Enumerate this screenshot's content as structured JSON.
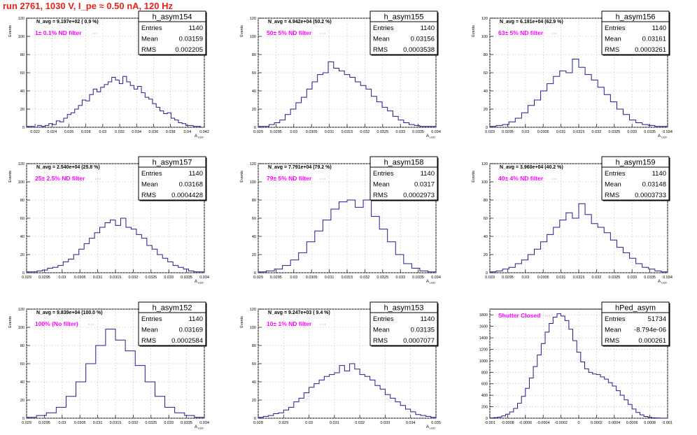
{
  "title": "run 2761,  1030 V, I_pe ≈ 0.50 nA, 120 Hz",
  "colors": {
    "hist": "#1f1f8f",
    "ann": "#ff00ff",
    "title": "#e8201a",
    "grid": "#c8c8c8"
  },
  "chart_data": [
    {
      "type": "bar",
      "name": "h_asym154",
      "ylabel": "Events",
      "xlabel": "A_LED",
      "xlim": [
        0.021,
        0.042
      ],
      "ylim": [
        0,
        120
      ],
      "xticks": [
        "0.022",
        "0.024",
        "0.026",
        "0.028",
        "0.03",
        "0.032",
        "0.034",
        "0.036",
        "0.038",
        "0.04",
        "0.042"
      ],
      "yticks": [
        "0",
        "20",
        "40",
        "60",
        "80",
        "100",
        "120"
      ],
      "navg": "N_avg = 9.197e+02 ( 0.9 %)",
      "ann": "1± 0.1% ND filter",
      "stats": {
        "entries": "1140",
        "mean": "0.03159",
        "rms": "0.002205"
      },
      "values": [
        1,
        1,
        0,
        2,
        1,
        2,
        4,
        3,
        7,
        6,
        10,
        14,
        16,
        20,
        24,
        30,
        29,
        36,
        42,
        39,
        44,
        47,
        50,
        55,
        52,
        48,
        56,
        50,
        46,
        42,
        45,
        38,
        33,
        31,
        26,
        22,
        18,
        15,
        16,
        10,
        8,
        5,
        4,
        2,
        2,
        1,
        1,
        0
      ]
    },
    {
      "type": "bar",
      "name": "h_asym155",
      "ylabel": "Events",
      "xlabel": "A_LED",
      "xlim": [
        0.029,
        0.034
      ],
      "ylim": [
        0,
        120
      ],
      "xticks": [
        "0.029",
        "0.0295",
        "0.03",
        "0.0305",
        "0.031",
        "0.0315",
        "0.032",
        "0.0325",
        "0.033",
        "0.0335",
        "0.034"
      ],
      "yticks": [
        "0",
        "20",
        "40",
        "60",
        "80",
        "100",
        "120"
      ],
      "navg": "N_avg = 4.942e+04 (50.2 %)",
      "ann": "50± 5% ND filter",
      "stats": {
        "entries": "1140",
        "mean": "0.03156",
        "rms": "0.0003538"
      },
      "values": [
        1,
        1,
        3,
        5,
        8,
        14,
        20,
        27,
        33,
        42,
        50,
        58,
        60,
        72,
        65,
        62,
        58,
        55,
        50,
        46,
        42,
        34,
        28,
        22,
        18,
        12,
        8,
        5,
        3,
        2,
        1,
        1,
        1
      ]
    },
    {
      "type": "bar",
      "name": "h_asym156",
      "ylabel": "Events",
      "xlabel": "A_LED",
      "xlim": [
        0.029,
        0.034
      ],
      "ylim": [
        0,
        120
      ],
      "xticks": [
        "0.029",
        "0.0295",
        "0.03",
        "0.0305",
        "0.031",
        "0.0315",
        "0.032",
        "0.0325",
        "0.033",
        "0.0335",
        "0.034"
      ],
      "yticks": [
        "0",
        "20",
        "40",
        "60",
        "80",
        "100",
        "120"
      ],
      "navg": "N_avg = 6.191e+04 (62.9 %)",
      "ann": "63± 5% ND filter",
      "stats": {
        "entries": "1140",
        "mean": "0.03161",
        "rms": "0.0003261"
      },
      "values": [
        1,
        2,
        3,
        6,
        10,
        16,
        24,
        30,
        40,
        48,
        56,
        62,
        60,
        75,
        66,
        58,
        52,
        44,
        36,
        28,
        20,
        14,
        8,
        5,
        3,
        2,
        1,
        1
      ]
    },
    {
      "type": "bar",
      "name": "h_asym157",
      "ylabel": "Events",
      "xlabel": "A_LED",
      "xlim": [
        0.029,
        0.034
      ],
      "ylim": [
        0,
        120
      ],
      "xticks": [
        "0.029",
        "0.0295",
        "0.03",
        "0.0305",
        "0.031",
        "0.0315",
        "0.032",
        "0.0325",
        "0.033",
        "0.0335",
        "0.034"
      ],
      "yticks": [
        "0",
        "20",
        "40",
        "60",
        "80",
        "100",
        "120"
      ],
      "navg": "N_avg = 2.540e+04 (25.8 %)",
      "ann": "25± 2.5% ND filter",
      "stats": {
        "entries": "1140",
        "mean": "0.03168",
        "rms": "0.0004428"
      },
      "values": [
        1,
        1,
        2,
        3,
        5,
        6,
        8,
        12,
        15,
        20,
        26,
        32,
        38,
        44,
        50,
        55,
        58,
        52,
        60,
        50,
        48,
        42,
        38,
        30,
        26,
        20,
        16,
        12,
        8,
        6,
        4,
        2,
        1,
        1
      ]
    },
    {
      "type": "bar",
      "name": "h_asym158",
      "ylabel": "Events",
      "xlabel": "A_LED",
      "xlim": [
        0.029,
        0.034
      ],
      "ylim": [
        0,
        120
      ],
      "xticks": [
        "0.029",
        "0.0295",
        "0.03",
        "0.0305",
        "0.031",
        "0.0315",
        "0.032",
        "0.0325",
        "0.033",
        "0.0335",
        "0.034"
      ],
      "yticks": [
        "0",
        "20",
        "40",
        "60",
        "80",
        "100",
        "120"
      ],
      "navg": "N_avg = 7.791e+04 (79.2 %)",
      "ann": "79± 5% ND filter",
      "stats": {
        "entries": "1140",
        "mean": "0.0317",
        "rms": "0.0002973"
      },
      "values": [
        1,
        2,
        4,
        8,
        14,
        22,
        34,
        46,
        58,
        70,
        78,
        80,
        72,
        80,
        62,
        48,
        34,
        20,
        10,
        5,
        2,
        1
      ]
    },
    {
      "type": "bar",
      "name": "h_asym159",
      "ylabel": "Events",
      "xlabel": "A_LED",
      "xlim": [
        0.029,
        0.034
      ],
      "ylim": [
        0,
        120
      ],
      "xticks": [
        "0.029",
        "0.0295",
        "0.03",
        "0.0305",
        "0.031",
        "0.0315",
        "0.032",
        "0.0325",
        "0.033",
        "0.0335",
        "0.034"
      ],
      "yticks": [
        "0",
        "20",
        "40",
        "60",
        "80",
        "100",
        "120"
      ],
      "navg": "N_avg = 3.960e+04 (40.2 %)",
      "ann": "40± 4% ND filter",
      "stats": {
        "entries": "1140",
        "mean": "0.03148",
        "rms": "0.0003733"
      },
      "values": [
        1,
        2,
        4,
        6,
        10,
        14,
        20,
        26,
        34,
        42,
        50,
        58,
        66,
        60,
        76,
        64,
        54,
        50,
        44,
        36,
        28,
        22,
        16,
        10,
        6,
        4,
        2,
        1
      ]
    },
    {
      "type": "bar",
      "name": "h_asym152",
      "ylabel": "Events",
      "xlabel": "A_LED",
      "xlim": [
        0.029,
        0.034
      ],
      "ylim": [
        0,
        120
      ],
      "xticks": [
        "0.029",
        "0.0295",
        "0.03",
        "0.0305",
        "0.031",
        "0.0315",
        "0.032",
        "0.0325",
        "0.033",
        "0.0335",
        "0.034"
      ],
      "yticks": [
        "0",
        "20",
        "40",
        "60",
        "80",
        "100",
        "120"
      ],
      "navg": "N_avg = 9.839e+04 (100.0 %)",
      "ann": "100% (No filter)",
      "stats": {
        "entries": "1140",
        "mean": "0.03169",
        "rms": "0.0002584"
      },
      "values": [
        1,
        3,
        6,
        12,
        24,
        40,
        60,
        80,
        98,
        86,
        74,
        58,
        40,
        24,
        12,
        6,
        3,
        1
      ]
    },
    {
      "type": "bar",
      "name": "h_asym153",
      "ylabel": "Events",
      "xlabel": "A_LED",
      "xlim": [
        0.028,
        0.035
      ],
      "ylim": [
        0,
        120
      ],
      "xticks": [
        "0.028",
        "0.029",
        "0.03",
        "0.031",
        "0.032",
        "0.033",
        "0.034",
        "0.035"
      ],
      "yticks": [
        "0",
        "20",
        "40",
        "60",
        "80",
        "100",
        "120"
      ],
      "navg": "N_avg = 9.247e+03 ( 9.4 %)",
      "ann": "10± 1% ND filter",
      "stats": {
        "entries": "1140",
        "mean": "0.03135",
        "rms": "0.0007077"
      },
      "values": [
        1,
        2,
        3,
        5,
        6,
        9,
        12,
        18,
        22,
        28,
        34,
        38,
        42,
        46,
        48,
        50,
        58,
        52,
        60,
        54,
        48,
        46,
        42,
        36,
        32,
        26,
        22,
        18,
        14,
        10,
        7,
        4,
        3,
        2,
        1
      ]
    },
    {
      "type": "bar",
      "name": "hPed_asym",
      "ylabel": "",
      "xlabel": "",
      "xlim": [
        -0.001,
        0.001
      ],
      "ylim": [
        0,
        1900
      ],
      "xticks": [
        "-0.001",
        "-0.0008",
        "-0.0006",
        "-0.0004",
        "-0.0002",
        "0",
        "0.0002",
        "0.0004",
        "0.0006",
        "0.0008",
        "0.001"
      ],
      "yticks": [
        "0",
        "200",
        "400",
        "600",
        "800",
        "1000",
        "1200",
        "1400",
        "1600",
        "1800"
      ],
      "navg": "",
      "ann": "Shutter Closed",
      "stats": {
        "entries": "51734",
        "mean": "-8.794e-06",
        "rms": "0.000261"
      },
      "values": [
        5,
        10,
        20,
        40,
        70,
        110,
        170,
        260,
        380,
        520,
        700,
        900,
        1100,
        1300,
        1500,
        1650,
        1760,
        1820,
        1780,
        1700,
        1550,
        1350,
        1150,
        980,
        860,
        800,
        770,
        760,
        720,
        680,
        620,
        560,
        480,
        400,
        320,
        240,
        160,
        100,
        60,
        30,
        15,
        8,
        4,
        2,
        1
      ]
    }
  ]
}
